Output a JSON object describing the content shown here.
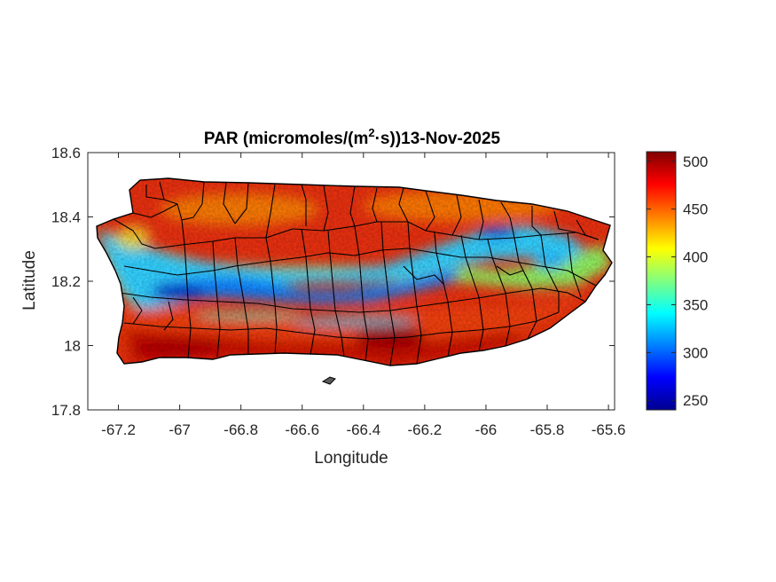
{
  "chart_data": {
    "type": "heatmap",
    "title_main": "PAR (micromoles/(m",
    "title_sup": "2",
    "title_rest": "·s))13-Nov-2025",
    "xlabel": "Longitude",
    "ylabel": "Latitude",
    "xlim": [
      -67.3,
      -65.58
    ],
    "ylim": [
      17.8,
      18.6
    ],
    "xticks": [
      -67.2,
      -67,
      -66.8,
      -66.6,
      -66.4,
      -66.2,
      -66,
      -65.8,
      -65.6
    ],
    "xtick_labels": [
      "-67.2",
      "-67",
      "-66.8",
      "-66.6",
      "-66.4",
      "-66.2",
      "-66",
      "-65.8",
      "-65.6"
    ],
    "yticks": [
      17.8,
      18,
      18.2,
      18.4,
      18.6
    ],
    "ytick_labels": [
      "17.8",
      "18",
      "18.2",
      "18.4",
      "18.6"
    ],
    "colorbar": {
      "range": [
        240,
        510
      ],
      "ticks": [
        250,
        300,
        350,
        400,
        450,
        500
      ],
      "tick_labels": [
        "250",
        "300",
        "350",
        "400",
        "450",
        "500"
      ],
      "colormap": "jet"
    },
    "features": {
      "northern_coast_value": 470,
      "southern_coast_value": 500,
      "central_band_value": 320,
      "minimum_value": 255,
      "maximum_value": 510
    },
    "colors": {
      "boundary": "#000000",
      "axes": "#262626"
    }
  }
}
